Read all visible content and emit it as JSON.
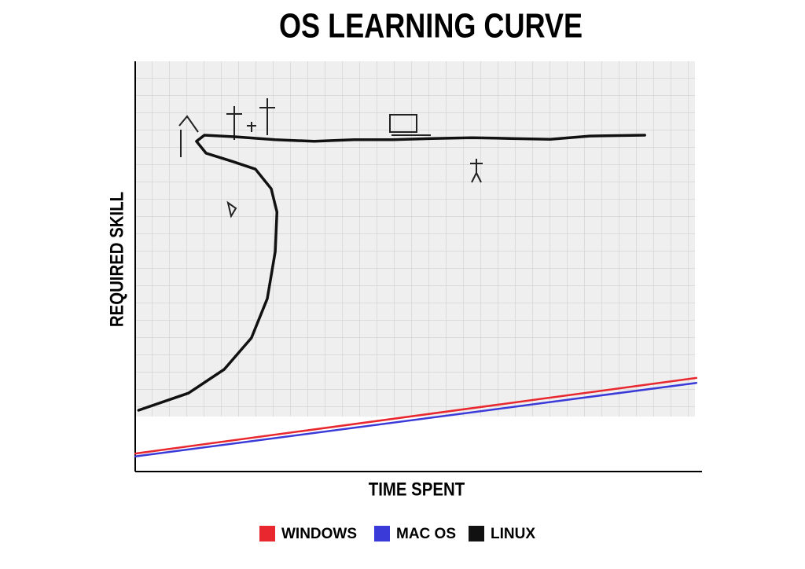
{
  "chart_data": {
    "type": "line",
    "title": "OS LEARNING CURVE",
    "x_label": "TIME SPENT",
    "y_label": "REQUIRED SKILL",
    "xlim": [
      0,
      100
    ],
    "ylim": [
      0,
      100
    ],
    "series": [
      {
        "name": "WINDOWS",
        "color": "#e8282e",
        "x": [
          0,
          99
        ],
        "values": [
          4.4,
          22.9
        ]
      },
      {
        "name": "MAC OS",
        "color": "#3a3ad8",
        "x": [
          0,
          99
        ],
        "values": [
          3.7,
          21.7
        ]
      },
      {
        "name": "LINUX",
        "color": "#111111",
        "x": [
          0.6,
          9.4,
          15.7,
          20.5,
          23.3,
          24.7,
          25.0,
          24.0,
          21.2,
          17.1,
          12.5,
          10.8,
          12.2,
          17.8,
          24.7,
          31.6,
          38.6,
          45.5,
          52.4,
          59.4,
          66.3,
          73.2,
          80.2,
          89.9
        ],
        "values": [
          15.0,
          19.2,
          25.0,
          32.7,
          42.3,
          53.8,
          63.5,
          69.2,
          74.0,
          75.9,
          77.9,
          80.8,
          82.3,
          81.9,
          81.2,
          80.8,
          81.2,
          81.2,
          81.5,
          81.7,
          81.5,
          81.3,
          82.1,
          82.3
        ]
      }
    ]
  }
}
